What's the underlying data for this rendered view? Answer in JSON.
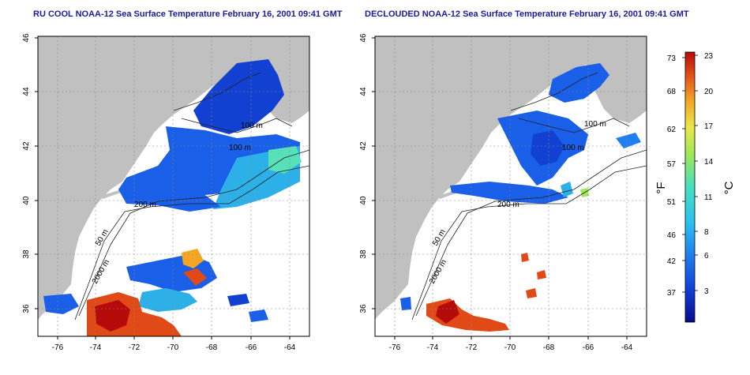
{
  "panels": [
    {
      "title": "RU COOL NOAA-12 Sea Surface Temperature February 16, 2001 09:41 GMT",
      "mode": "raw"
    },
    {
      "title": "DECLOUDED NOAA-12 Sea Surface Temperature February 16, 2001 09:41 GMT",
      "mode": "declouded"
    }
  ],
  "axes": {
    "lon_ticks": [
      "-76",
      "-74",
      "-72",
      "-70",
      "-68",
      "-66",
      "-64"
    ],
    "lat_ticks": [
      "36",
      "38",
      "40",
      "42",
      "44",
      "46"
    ],
    "lon_range": [
      -77,
      -63
    ],
    "lat_range": [
      35,
      46
    ],
    "grid": true
  },
  "contour_labels": [
    "50 m",
    "200 m",
    "100 m",
    "2000 m",
    "100 m"
  ],
  "colorbar": {
    "fahrenheit_ticks": [
      "73",
      "68",
      "62",
      "57",
      "51",
      "46",
      "42",
      "37"
    ],
    "celsius_ticks": [
      "23",
      "20",
      "17",
      "14",
      "11",
      "8",
      "6",
      "3"
    ],
    "fahrenheit_unit": "°F",
    "celsius_unit": "°C",
    "colors": [
      "#0a0a8c",
      "#0f3fd6",
      "#1f7ff0",
      "#29c1f0",
      "#46e0c0",
      "#9ee85a",
      "#e8e84a",
      "#f5a524",
      "#e04a16",
      "#b40a0a"
    ]
  },
  "colors": {
    "land": "#c0c0c0",
    "ocean_nodata": "#ffffff",
    "title": "#1a1a9c"
  }
}
